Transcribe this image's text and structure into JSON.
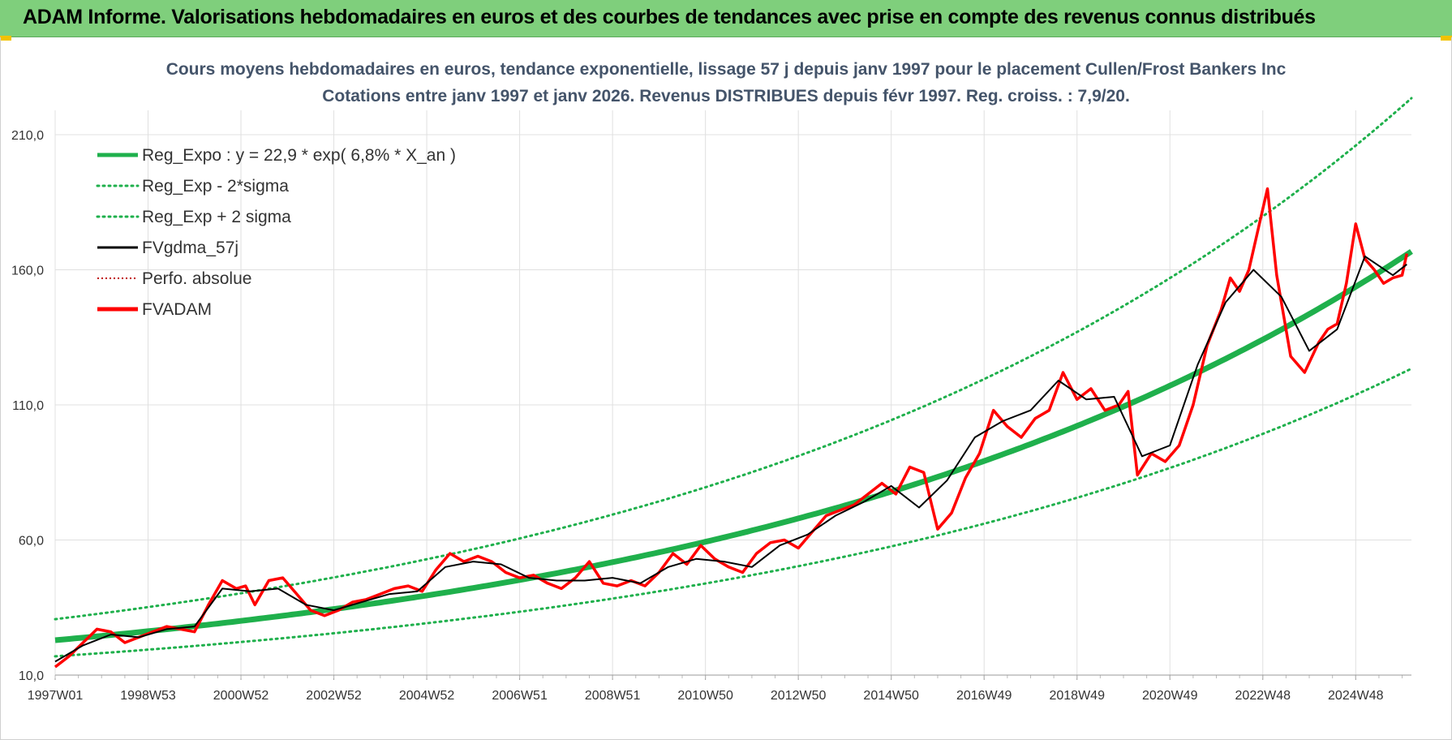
{
  "banner": {
    "title": "ADAM Informe. Valorisations hebdomadaires en euros et des courbes de tendances avec prise en compte des revenus connus distribués"
  },
  "colors": {
    "banner_bg": "#7fcf7c",
    "reg_expo": "#1fb04c",
    "sigma": "#1fb04c",
    "fvgdma": "#000000",
    "perfo": "#c00000",
    "fvadam": "#ff0000",
    "grid": "#e0e0e0"
  },
  "chart_data": {
    "type": "line",
    "title": [
      "Cours moyens hebdomadaires en euros, tendance exponentielle, lissage 57 j depuis janv 1997 pour le placement Cullen/Frost Bankers Inc",
      "Cotations entre janv 1997 et janv 2026. Revenus DISTRIBUES depuis févr 1997. Reg. croiss. : 7,9/20."
    ],
    "ylim": [
      10,
      210
    ],
    "yticks": [
      "210,0",
      "160,0",
      "110,0",
      "60,0",
      "10,0"
    ],
    "ytick_values": [
      210,
      160,
      110,
      60,
      10
    ],
    "xlim": [
      1997.0,
      2026.2
    ],
    "xtick_labels": [
      "1997W01",
      "1998W53",
      "2000W52",
      "2002W52",
      "2004W52",
      "2006W51",
      "2008W51",
      "2010W50",
      "2012W50",
      "2014W50",
      "2016W49",
      "2018W49",
      "2020W49",
      "2022W48",
      "2024W48"
    ],
    "xtick_values": [
      1997.0,
      1999.0,
      2001.0,
      2003.0,
      2005.0,
      2007.0,
      2009.0,
      2011.0,
      2013.0,
      2015.0,
      2017.0,
      2019.0,
      2021.0,
      2023.0,
      2025.0
    ],
    "grid": true,
    "legend_position": "top-left",
    "legend": [
      {
        "label": "Reg_Expo : y = 22,9 * exp( 6,8% *  X_an )",
        "style": "solid-thick",
        "color": "#1fb04c"
      },
      {
        "label": "Reg_Exp - 2*sigma",
        "style": "dotted",
        "color": "#1fb04c"
      },
      {
        "label": "Reg_Exp + 2 sigma",
        "style": "dotted",
        "color": "#1fb04c"
      },
      {
        "label": "FVgdma_57j",
        "style": "solid",
        "color": "#000000"
      },
      {
        "label": "Perfo. absolue",
        "style": "dotted-thin",
        "color": "#c00000"
      },
      {
        "label": "FVADAM",
        "style": "solid-thick",
        "color": "#ff0000"
      }
    ],
    "trend": {
      "a": 22.9,
      "rate": 0.068,
      "lower_factor": 0.74,
      "upper_factor": 1.34
    },
    "series": [
      {
        "name": "FVADAM",
        "x": [
          1997.0,
          1997.3,
          1997.6,
          1997.9,
          1998.2,
          1998.5,
          1998.8,
          1999.1,
          1999.4,
          1999.7,
          2000.0,
          2000.3,
          2000.6,
          2000.9,
          2001.1,
          2001.3,
          2001.6,
          2001.9,
          2002.2,
          2002.5,
          2002.8,
          2003.1,
          2003.4,
          2003.7,
          2004.0,
          2004.3,
          2004.6,
          2004.9,
          2005.2,
          2005.5,
          2005.8,
          2006.1,
          2006.4,
          2006.7,
          2007.0,
          2007.3,
          2007.6,
          2007.9,
          2008.2,
          2008.5,
          2008.8,
          2009.1,
          2009.4,
          2009.7,
          2010.0,
          2010.3,
          2010.6,
          2010.9,
          2011.2,
          2011.5,
          2011.8,
          2012.1,
          2012.4,
          2012.7,
          2013.0,
          2013.3,
          2013.6,
          2013.9,
          2014.2,
          2014.5,
          2014.8,
          2015.1,
          2015.4,
          2015.7,
          2016.0,
          2016.3,
          2016.6,
          2016.9,
          2017.2,
          2017.5,
          2017.8,
          2018.1,
          2018.4,
          2018.7,
          2019.0,
          2019.3,
          2019.6,
          2019.9,
          2020.1,
          2020.3,
          2020.6,
          2020.9,
          2021.2,
          2021.5,
          2021.8,
          2022.1,
          2022.3,
          2022.5,
          2022.7,
          2022.9,
          2023.1,
          2023.3,
          2023.6,
          2023.9,
          2024.2,
          2024.4,
          2024.6,
          2024.8,
          2025.0,
          2025.2,
          2025.4,
          2025.6,
          2025.8,
          2026.0,
          2026.1
        ],
        "values": [
          13,
          17,
          22,
          27,
          26,
          22,
          24,
          26,
          28,
          27,
          26,
          36,
          45,
          42,
          43,
          36,
          45,
          46,
          40,
          34,
          32,
          34,
          37,
          38,
          40,
          42,
          43,
          41,
          49,
          55,
          52,
          54,
          52,
          48,
          46,
          47,
          44,
          42,
          46,
          52,
          44,
          43,
          45,
          43,
          48,
          55,
          51,
          58,
          53,
          50,
          48,
          55,
          59,
          60,
          57,
          63,
          69,
          71,
          73,
          77,
          81,
          77,
          87,
          85,
          64,
          70,
          83,
          92,
          108,
          102,
          98,
          105,
          108,
          122,
          112,
          116,
          108,
          110,
          115,
          84,
          92,
          89,
          95,
          110,
          132,
          145,
          157,
          152,
          160,
          175,
          190,
          158,
          128,
          122,
          133,
          138,
          140,
          155,
          177,
          164,
          160,
          155,
          157,
          158,
          166
        ]
      },
      {
        "name": "FVgdma_57j",
        "x": [
          1997.0,
          1997.6,
          1998.2,
          1998.8,
          1999.4,
          2000.0,
          2000.6,
          2001.2,
          2001.8,
          2002.4,
          2003.0,
          2003.6,
          2004.2,
          2004.8,
          2005.4,
          2006.0,
          2006.6,
          2007.2,
          2007.8,
          2008.4,
          2009.0,
          2009.6,
          2010.2,
          2010.8,
          2011.4,
          2012.0,
          2012.6,
          2013.2,
          2013.8,
          2014.4,
          2015.0,
          2015.6,
          2016.2,
          2016.8,
          2017.4,
          2018.0,
          2018.6,
          2019.2,
          2019.8,
          2020.4,
          2021.0,
          2021.6,
          2022.2,
          2022.8,
          2023.4,
          2024.0,
          2024.6,
          2025.2,
          2025.8,
          2026.1
        ],
        "values": [
          15,
          21,
          25,
          24,
          27,
          28,
          42,
          41,
          42,
          36,
          34,
          37,
          40,
          41,
          50,
          52,
          51,
          46,
          45,
          45,
          46,
          44,
          50,
          53,
          52,
          50,
          58,
          62,
          69,
          74,
          80,
          72,
          82,
          98,
          104,
          108,
          119,
          112,
          113,
          91,
          95,
          125,
          148,
          160,
          150,
          130,
          138,
          165,
          158,
          162
        ]
      }
    ]
  }
}
